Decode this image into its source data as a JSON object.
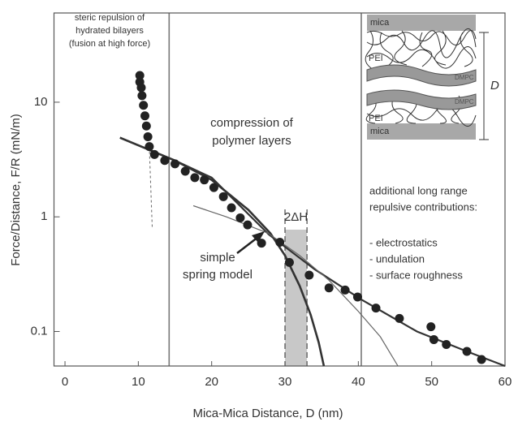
{
  "chart_data": {
    "type": "scatter",
    "x_label": "Mica-Mica Distance, D (nm)",
    "y_label": "Force/Distance, F/R (mN/m)",
    "xlim": [
      -1.5,
      60
    ],
    "ylim": [
      0.05,
      60
    ],
    "log_y": true,
    "xticks": [
      0,
      10,
      20,
      30,
      40,
      50,
      60
    ],
    "yticks": [
      0.1,
      1,
      10
    ],
    "series": [
      {
        "color": "#222222",
        "x": [
          10.2,
          10.2,
          10.4,
          10.5,
          10.7,
          10.9,
          11.1,
          11.3,
          11.5,
          12.2,
          13.6,
          15,
          16.4,
          17.7,
          19,
          20.3,
          21.6,
          22.7,
          23.9,
          24.9,
          26.8,
          29.3,
          30.6,
          33.3,
          36,
          38.2,
          39.9,
          42.4,
          45.6,
          49.9,
          50.3,
          52,
          54.8,
          56.8
        ],
        "values": [
          17.1,
          15,
          13.4,
          11.4,
          9.4,
          7.6,
          6.2,
          5,
          4.1,
          3.5,
          3.1,
          2.9,
          2.5,
          2.2,
          2.1,
          1.8,
          1.5,
          1.2,
          0.98,
          0.85,
          0.59,
          0.6,
          0.4,
          0.31,
          0.24,
          0.23,
          0.2,
          0.16,
          0.13,
          0.11,
          0.085,
          0.077,
          0.067,
          0.057
        ]
      }
    ],
    "curves": [
      {
        "color": "#333333",
        "width": 2.2,
        "dash": false,
        "x": [
          7.5,
          15,
          20,
          27.8,
          34,
          40.4,
          48,
          54.8,
          60
        ],
        "values": [
          4.9,
          3.1,
          2.2,
          0.7,
          0.35,
          0.19,
          0.1,
          0.067,
          0.05
        ]
      },
      {
        "color": "#333333",
        "width": 2.6,
        "dash": false,
        "x": [
          7.5,
          15,
          20,
          25,
          28,
          30,
          32,
          33.5,
          34.6,
          35.3
        ],
        "values": [
          4.9,
          3.1,
          2.1,
          1.15,
          0.72,
          0.46,
          0.25,
          0.14,
          0.08,
          0.05
        ]
      },
      {
        "color": "#666666",
        "width": 1.2,
        "dash": false,
        "x": [
          17.5,
          22,
          27.7,
          32,
          36,
          40,
          43,
          45.4
        ],
        "values": [
          1.25,
          1.0,
          0.72,
          0.46,
          0.28,
          0.15,
          0.09,
          0.05
        ]
      },
      {
        "color": "#666666",
        "width": 1,
        "dash": true,
        "x": [
          11.5,
          11.9
        ],
        "values": [
          4.1,
          0.8
        ]
      }
    ],
    "vlines": [
      14.2,
      40.4
    ],
    "band": {
      "range": [
        30,
        33
      ],
      "label": "2ΔH"
    },
    "annotations": [
      {
        "lines": [
          "steric repulsion of",
          "hydrated bilayers",
          "(fusion at high force)"
        ]
      },
      {
        "lines": [
          "compression of",
          "polymer layers"
        ]
      },
      {
        "lines": [
          "additional long range",
          "repulsive contributions:"
        ]
      },
      {
        "lines": [
          "- electrostatics",
          "- undulation",
          "- surface roughness"
        ]
      },
      {
        "lines": [
          "simple",
          "spring model"
        ]
      }
    ],
    "inset": {
      "mica_top": "mica",
      "mica_bottom": "mica",
      "pei_top": "PEI",
      "pei_bottom": "PEI",
      "dmpc_top": "DMPC",
      "dmpc_bottom": "DMPC",
      "distance": "D"
    }
  }
}
